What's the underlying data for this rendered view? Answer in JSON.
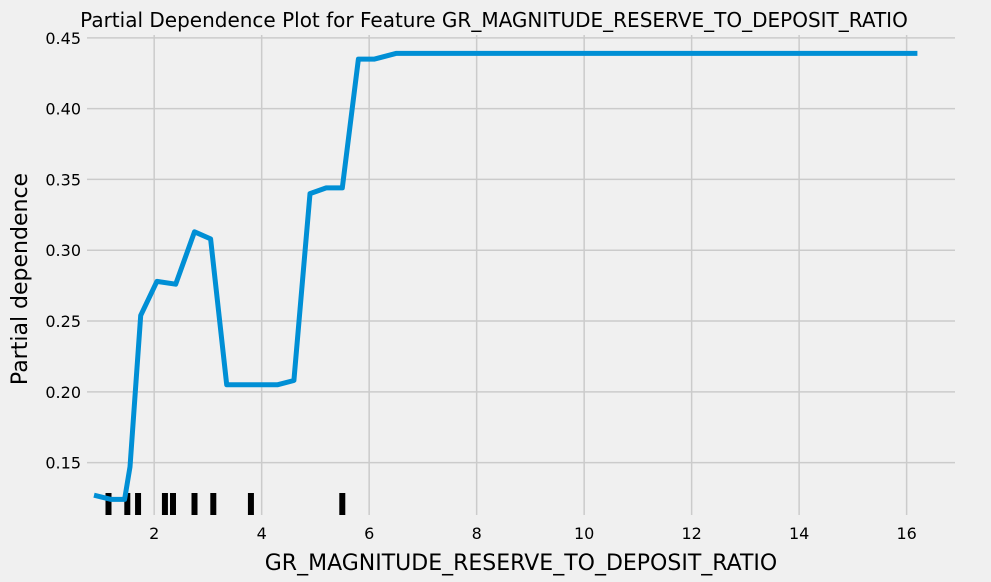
{
  "chart_data": {
    "type": "line",
    "title": "Partial Dependence Plot for Feature GR_MAGNITUDE_RESERVE_TO_DEPOSIT_RATIO",
    "xlabel": "GR_MAGNITUDE_RESERVE_TO_DEPOSIT_RATIO",
    "ylabel": "Partial dependence",
    "xlim": [
      0.75,
      16.9
    ],
    "ylim": [
      0.113,
      0.452
    ],
    "xticks": [
      2,
      4,
      6,
      8,
      10,
      12,
      14,
      16
    ],
    "xtick_labels": [
      "2",
      "4",
      "6",
      "8",
      "10",
      "12",
      "14",
      "16"
    ],
    "yticks": [
      0.15,
      0.2,
      0.25,
      0.3,
      0.35,
      0.4,
      0.45
    ],
    "ytick_labels": [
      "0.15",
      "0.20",
      "0.25",
      "0.30",
      "0.35",
      "0.40",
      "0.45"
    ],
    "grid": true,
    "line_color": "#008fd5",
    "rug_color": "#000000",
    "series": [
      {
        "x": [
          0.88,
          1.2,
          1.45,
          1.55,
          1.75,
          2.05,
          2.4,
          2.75,
          3.05,
          3.35,
          3.7,
          4.0,
          4.3,
          4.6,
          4.9,
          5.2,
          5.5,
          5.8,
          6.1,
          6.5,
          7.0,
          8.0,
          10.0,
          12.0,
          14.0,
          16.2
        ],
        "y": [
          0.127,
          0.124,
          0.124,
          0.147,
          0.254,
          0.278,
          0.276,
          0.313,
          0.308,
          0.205,
          0.205,
          0.205,
          0.205,
          0.208,
          0.34,
          0.344,
          0.344,
          0.435,
          0.435,
          0.439,
          0.439,
          0.439,
          0.439,
          0.439,
          0.439,
          0.439
        ]
      }
    ],
    "rug": [
      1.15,
      1.5,
      1.7,
      2.2,
      2.35,
      2.75,
      3.1,
      3.8,
      5.5
    ]
  }
}
